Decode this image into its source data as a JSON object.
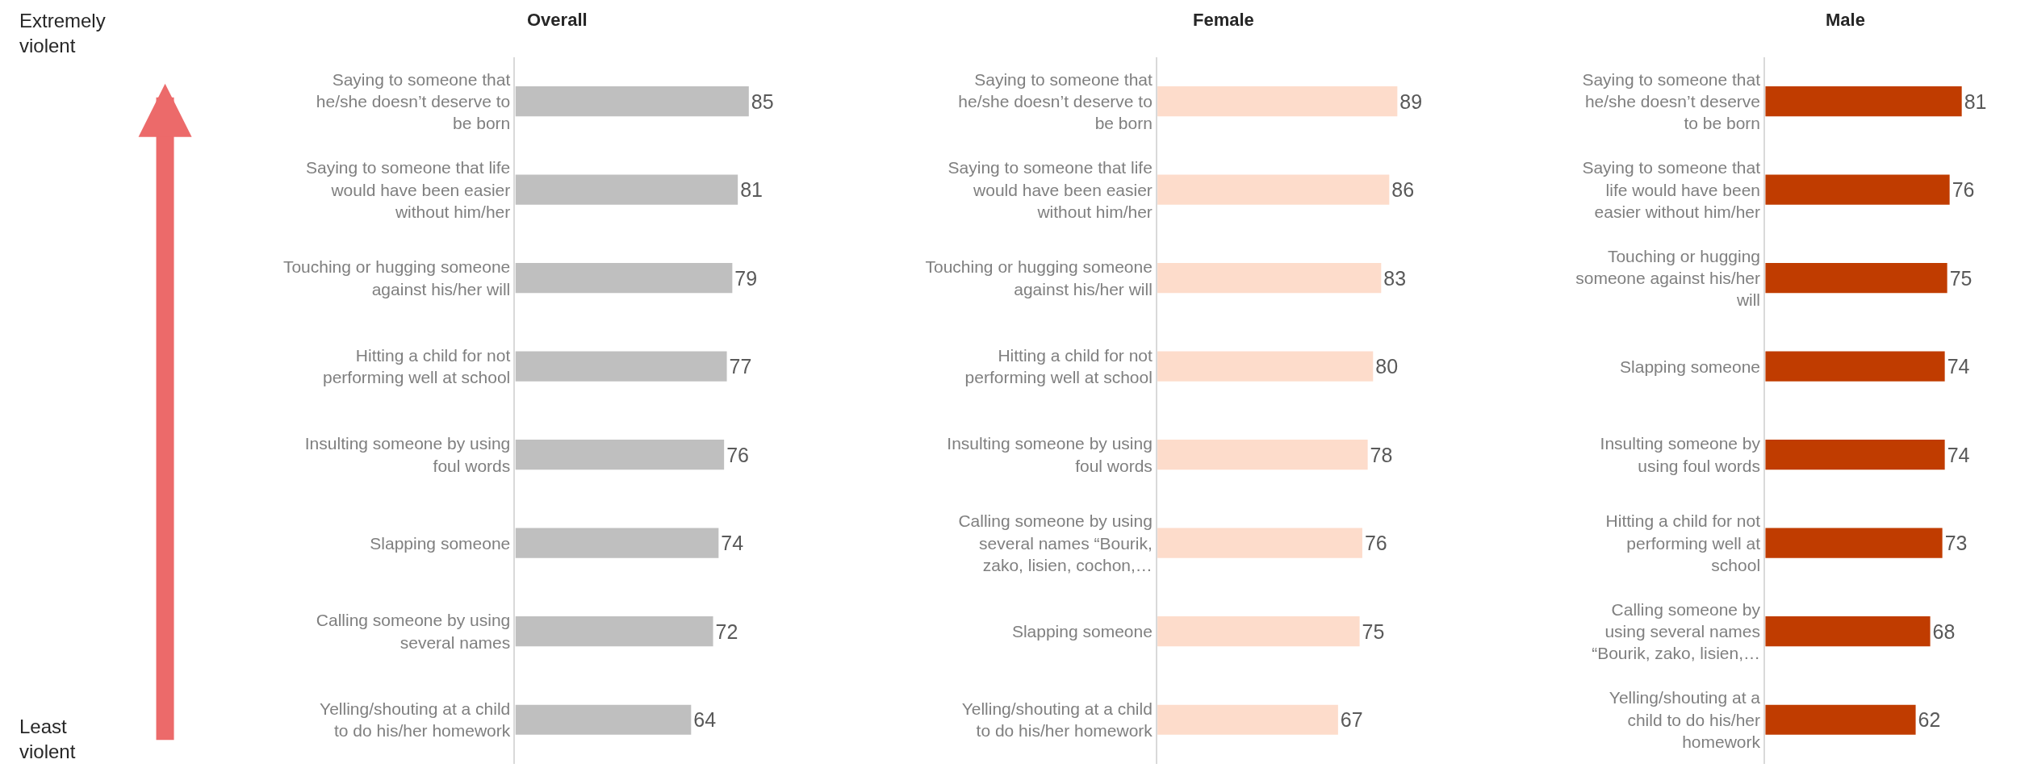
{
  "chart_data": [
    {
      "type": "bar",
      "orientation": "horizontal",
      "title": "Overall",
      "data_labels": true,
      "tick_labels": "y",
      "categories": [
        "Saying to someone that he/she doesn’t deserve to be born",
        "Saying to someone that life would have been easier without him/her",
        "Touching or hugging someone against his/her will",
        "Hitting a child for not performing well at school",
        "Insulting someone by using foul words",
        "Slapping someone",
        "Calling someone by using several names",
        "Yelling/shouting at a child to do his/her homework"
      ],
      "values": [
        85,
        81,
        79,
        77,
        76,
        74,
        72,
        64
      ],
      "color": "#bfbfbf",
      "annotations": [
        "Extremely violent",
        "Least violent"
      ]
    },
    {
      "type": "bar",
      "orientation": "horizontal",
      "title": "Female",
      "data_labels": true,
      "tick_labels": "y",
      "categories": [
        "Saying to someone that he/she doesn’t deserve to be born",
        "Saying to someone that life would have been easier without him/her",
        "Touching or hugging someone against his/her will",
        "Hitting a child for not performing well at school",
        "Insulting someone by using foul words",
        "Calling someone by using several names “Bourik, zako, lisien, cochon,…",
        "Slapping someone",
        "Yelling/shouting at a child to do his/her homework"
      ],
      "values": [
        89,
        86,
        83,
        80,
        78,
        76,
        75,
        67
      ],
      "color": "#fddccb"
    },
    {
      "type": "bar",
      "orientation": "horizontal",
      "title": "Male",
      "data_labels": true,
      "tick_labels": "y",
      "categories": [
        "Saying to someone that he/she doesn’t deserve to be born",
        "Saying to someone that life would have been easier without him/her",
        "Touching or hugging someone against his/her will",
        "Slapping someone",
        "Insulting someone by using foul words",
        "Hitting a child for not performing well at school",
        "Calling someone by using several names “Bourik, zako, lisien,…",
        "Yelling/shouting at a child to do his/her homework"
      ],
      "values": [
        81,
        76,
        75,
        74,
        74,
        73,
        68,
        62
      ],
      "color": "#c03c00"
    }
  ]
}
